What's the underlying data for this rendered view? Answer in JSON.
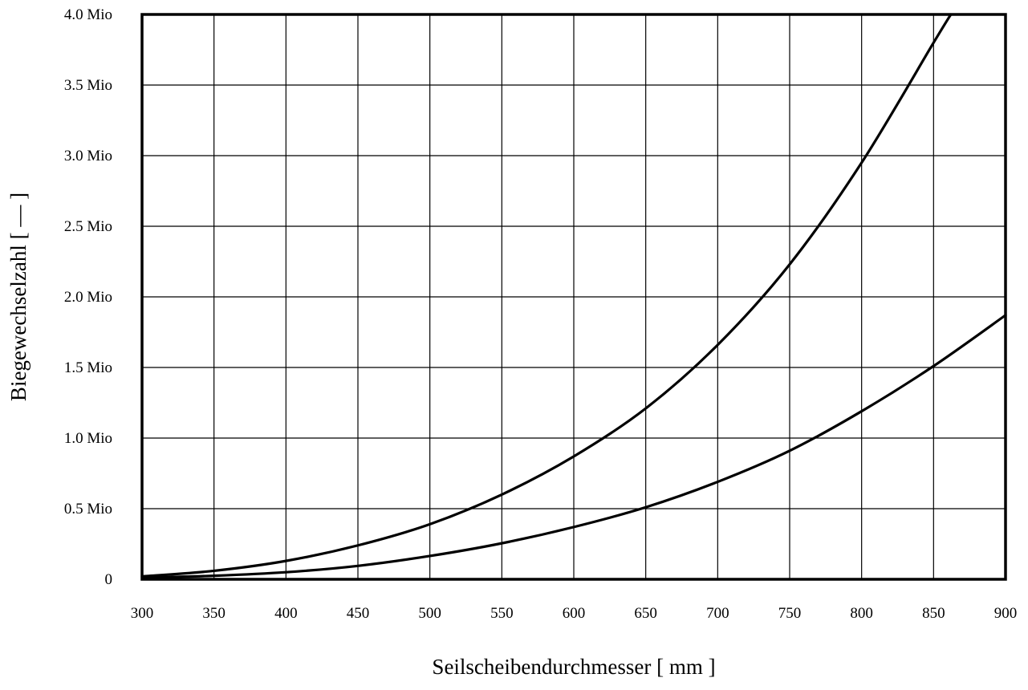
{
  "chart_data": {
    "type": "line",
    "title": "",
    "xlabel": "Seilscheibendurchmesser [ mm ]",
    "ylabel": "Biegewechselzahl [ — ]",
    "xlim": [
      300,
      900
    ],
    "ylim": [
      0,
      4000000
    ],
    "x_ticks": [
      300,
      350,
      400,
      450,
      500,
      550,
      600,
      650,
      700,
      750,
      800,
      850,
      900
    ],
    "x_tick_labels": [
      "300",
      "350",
      "400",
      "450",
      "500",
      "550",
      "600",
      "650",
      "700",
      "750",
      "800",
      "850",
      "900"
    ],
    "y_ticks": [
      0,
      500000,
      1000000,
      1500000,
      2000000,
      2500000,
      3000000,
      3500000,
      4000000
    ],
    "y_tick_labels": [
      "0",
      "0.5 Mio",
      "1.0 Mio",
      "1.5 Mio",
      "2.0 Mio",
      "2.5 Mio",
      "3.0 Mio",
      "3.5 Mio",
      "4.0 Mio"
    ],
    "grid": true,
    "series": [
      {
        "x": [
          300,
          350,
          400,
          450,
          500,
          550,
          600,
          650,
          700,
          750,
          800,
          850,
          862
        ],
        "y": [
          20000,
          60000,
          130000,
          240000,
          390000,
          600000,
          870000,
          1210000,
          1660000,
          2230000,
          2950000,
          3800000,
          4000000
        ]
      },
      {
        "x": [
          300,
          350,
          400,
          450,
          500,
          550,
          600,
          650,
          700,
          750,
          800,
          850,
          900
        ],
        "y": [
          10000,
          25000,
          50000,
          95000,
          165000,
          255000,
          370000,
          510000,
          690000,
          910000,
          1190000,
          1510000,
          1870000
        ]
      }
    ]
  }
}
